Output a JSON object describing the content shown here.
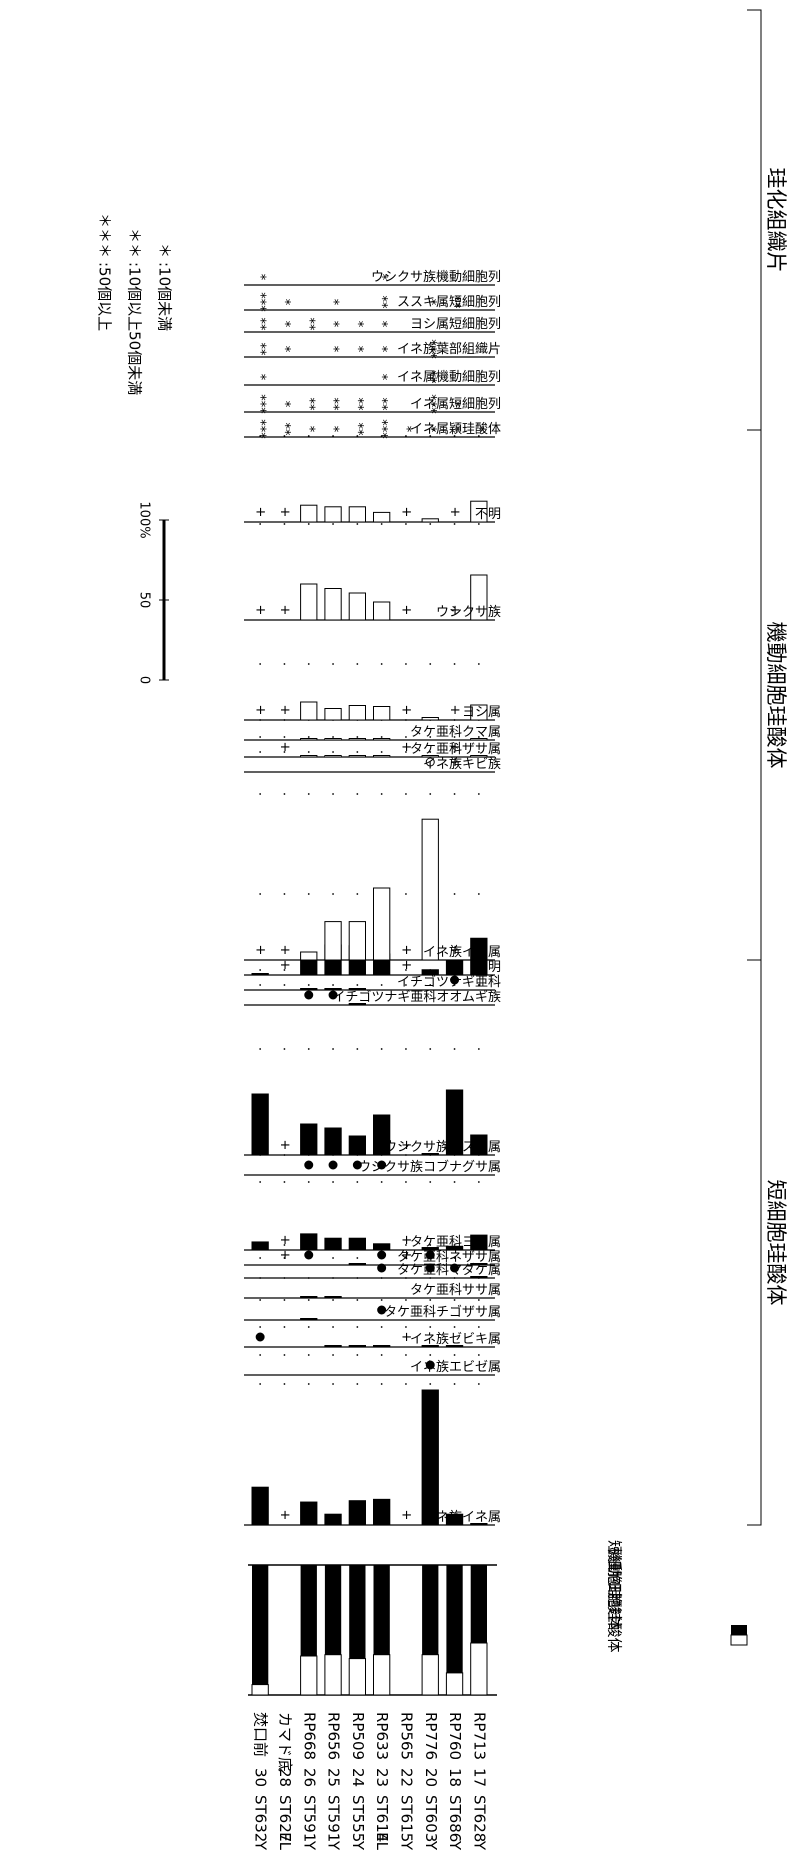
{
  "chart_data": {
    "type": "bar",
    "samples": [
      {
        "no": "17",
        "site": "ST628",
        "layer": "Y",
        "code": "RP713"
      },
      {
        "no": "18",
        "site": "ST686",
        "layer": "Y",
        "code": "RP760"
      },
      {
        "no": "20",
        "site": "ST603",
        "layer": "Y",
        "code": "RP776"
      },
      {
        "no": "22",
        "site": "ST615",
        "layer": "Y",
        "code": "RP565"
      },
      {
        "no": "23",
        "site": "ST614",
        "layer": "EL",
        "code": "RP633"
      },
      {
        "no": "24",
        "site": "ST555",
        "layer": "Y",
        "code": "RP509"
      },
      {
        "no": "25",
        "site": "ST591",
        "layer": "Y",
        "code": "RP656"
      },
      {
        "no": "26",
        "site": "ST591",
        "layer": "Y",
        "code": "RP668"
      },
      {
        "no": "28",
        "site": "ST627",
        "layer": "EL",
        "code": "カマド底"
      },
      {
        "no": "30",
        "site": "ST632",
        "layer": "Y",
        "code": "焚口前"
      }
    ],
    "ratio": {
      "legend": [
        "機動細胞珪酸体",
        "短細胞珪酸体"
      ],
      "short": [
        60,
        83,
        69,
        null,
        69,
        72,
        69,
        70,
        null,
        92
      ]
    },
    "groups": {
      "short": "短細胞珪酸体",
      "motor": "機動細胞珪酸体",
      "tissue": "珪化組織片"
    },
    "short_cell": [
      {
        "label": "イネ族イネ属",
        "values": [
          0,
          8,
          100,
          "+",
          19,
          18,
          8,
          17,
          "+",
          28
        ]
      },
      {
        "label": "イネ族エビゼ属",
        "values": [
          "",
          "",
          "●",
          "",
          "",
          "",
          "",
          "",
          "",
          ""
        ]
      },
      {
        "label": "イネ族ゼビキ属",
        "values": [
          "",
          1,
          2,
          "+",
          3,
          2,
          2,
          "",
          "",
          "●"
        ]
      },
      {
        "label": "タケ亜科チゴザサ属",
        "values": [
          "",
          "",
          "",
          "",
          "●",
          "",
          "",
          5,
          "",
          ""
        ]
      },
      {
        "label": "タケ亜科ササ属",
        "values": [
          "",
          "",
          "",
          "",
          "",
          "",
          2,
          3,
          "",
          ""
        ]
      },
      {
        "label": "タケ亜科マダケ属",
        "values": [
          3,
          "●",
          "●",
          "",
          "●",
          "",
          "",
          "",
          "",
          ""
        ]
      },
      {
        "label": "タケ亜科ネザサ属",
        "values": [
          2,
          "",
          "●",
          "+",
          "●",
          2,
          "",
          "●",
          "+",
          ""
        ]
      },
      {
        "label": "タケ亜科ヨシ属",
        "values": [
          24,
          6,
          4,
          "+",
          10,
          19,
          19,
          26,
          "+",
          13
        ]
      },
      {
        "label": "ウシクサ族コブナグサ属",
        "values": [
          "",
          "",
          "",
          "",
          "●",
          "●",
          "●",
          "●",
          "",
          ""
        ]
      },
      {
        "label": "ウシクサ族ススキ属",
        "values": [
          20,
          65,
          1,
          "+",
          40,
          19,
          27,
          31,
          "+",
          61
        ]
      },
      {
        "label": "イチゴツナギ亜科オオムギ族",
        "values": [
          "",
          "",
          "",
          "",
          "",
          2,
          "●",
          "●",
          "",
          ""
        ]
      },
      {
        "label": "イチゴツナギ亜科",
        "values": [
          "",
          "●",
          "",
          "",
          "",
          3,
          4,
          1,
          "",
          ""
        ]
      },
      {
        "label": "不明",
        "values": [
          49,
          19,
          7,
          "+",
          28,
          39,
          40,
          19,
          "+",
          1
        ]
      }
    ],
    "motor_cell": [
      {
        "label": "イネ族イネ属",
        "values": [
          "",
          "+",
          88,
          "+",
          45,
          24,
          24,
          5,
          "+",
          "+"
        ]
      },
      {
        "label": "イネ族キビ族",
        "values": [
          "",
          "+",
          "○",
          "",
          "",
          "",
          "",
          "",
          "",
          ""
        ]
      },
      {
        "label": "タケ亜科ザサ属",
        "values": [
          8,
          "+",
          2,
          "+",
          3,
          4,
          3,
          6,
          "+",
          ""
        ]
      },
      {
        "label": "タケ亜科クマ属",
        "values": [
          4,
          "",
          "",
          "",
          3,
          2,
          5,
          4,
          "",
          ""
        ]
      },
      {
        "label": "ヨシ属",
        "values": [
          30,
          "+",
          5,
          "+",
          27,
          29,
          23,
          36,
          "+",
          "+"
        ]
      },
      {
        "label": "ウシクサ族",
        "values": [
          50,
          "+",
          "",
          "+",
          20,
          30,
          35,
          40,
          "+",
          "+"
        ]
      },
      {
        "label": "不明",
        "values": [
          26,
          "+",
          4,
          "+",
          12,
          19,
          19,
          21,
          "+",
          "+"
        ]
      }
    ],
    "silicified_tissue": [
      {
        "label": "イネ属穎珪酸体",
        "values": [
          "*",
          "*",
          "*",
          "*",
          "***",
          "**",
          "*",
          "*",
          "**",
          "***"
        ]
      },
      {
        "label": "イネ属短細胞列",
        "values": [
          "",
          "*",
          "***",
          "",
          "**",
          "**",
          "**",
          "**",
          "*",
          "***"
        ]
      },
      {
        "label": "イネ属機動細胞列",
        "values": [
          "",
          "",
          "**",
          "",
          "*",
          "",
          "",
          "",
          "",
          "*"
        ]
      },
      {
        "label": "イネ族葉部組織片",
        "values": [
          "",
          "",
          "***",
          "",
          "*",
          "*",
          "*",
          "",
          "*",
          "**"
        ]
      },
      {
        "label": "ヨシ属短細胞列",
        "values": [
          "",
          "",
          "",
          "",
          "*",
          "*",
          "*",
          "**",
          "*",
          "**"
        ]
      },
      {
        "label": "ススキ属短細胞列",
        "values": [
          "",
          "**",
          "*",
          "",
          "**",
          "",
          "*",
          "",
          "*",
          "***"
        ]
      },
      {
        "label": "ウシクサ族機動細胞列",
        "values": [
          "",
          "",
          "",
          "",
          "*",
          "",
          "",
          "",
          "",
          "*"
        ]
      }
    ],
    "scale": {
      "ticks": [
        "0",
        "50",
        "100%"
      ]
    },
    "star_legend": [
      {
        "sym": "＊",
        "text": ":10個未満"
      },
      {
        "sym": "＊＊",
        "text": ":10個以上50個未満"
      },
      {
        "sym": "＊＊＊",
        "text": ":50個以上"
      }
    ]
  }
}
